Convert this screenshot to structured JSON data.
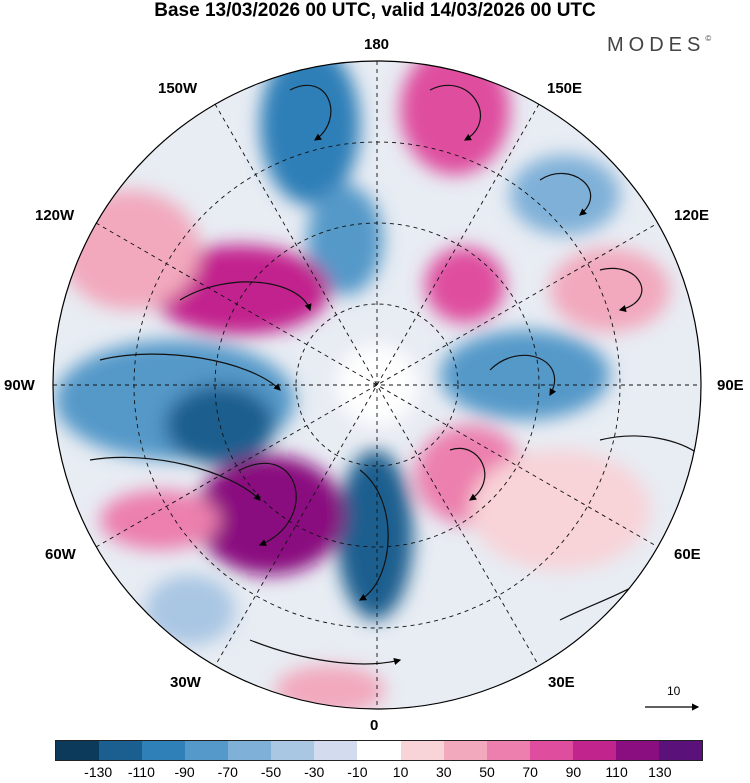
{
  "title": "Base 13/03/2026 00 UTC, valid 14/03/2026 00 UTC",
  "brand": "MODES",
  "brand_mark": "©",
  "lon_labels": {
    "top": "180",
    "bottom": "0",
    "left": "90W",
    "right": "90E",
    "ul1": "150W",
    "ul2": "120W",
    "ur1": "150E",
    "ur2": "120E",
    "ll1": "60W",
    "ll2": "30W",
    "lr1": "60E",
    "lr2": "30E"
  },
  "reference_arrow": "10",
  "colorbar": {
    "colors": [
      "#0b3a5a",
      "#1a5f8f",
      "#2f7fb8",
      "#5499c9",
      "#7fb0d8",
      "#a9c6e3",
      "#d2dcee",
      "#ffffff",
      "#f8d3d8",
      "#f2a9bd",
      "#ec7fad",
      "#df4d9f",
      "#c2248e",
      "#8a0e7f",
      "#5a127a"
    ],
    "ticks": [
      "-130",
      "-110",
      "-90",
      "-70",
      "-50",
      "-30",
      "-10",
      "10",
      "30",
      "50",
      "70",
      "90",
      "110",
      "130"
    ]
  }
}
